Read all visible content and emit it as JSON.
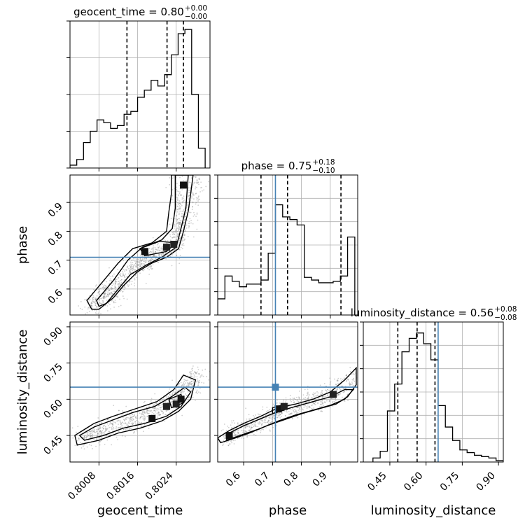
{
  "chart_data": {
    "type": "corner",
    "parameters": [
      "geocent_time",
      "phase",
      "luminosity_distance"
    ],
    "colors": {
      "truth": "#4682b4",
      "hist": "#000000",
      "grid": "#b0b0b0",
      "density": "#000000"
    },
    "truths": {
      "phase": 0.71,
      "luminosity_distance": 0.65
    },
    "axis_ranges": {
      "geocent_time": [
        0.8002,
        0.8031
      ],
      "phase": [
        0.51,
        0.995
      ],
      "luminosity_distance": [
        0.34,
        0.92
      ]
    },
    "ticks": {
      "geocent_time": {
        "values": [
          0.8008,
          0.8016,
          0.8024
        ],
        "labels": [
          "0.8008",
          "0.8016",
          "0.8024"
        ]
      },
      "phase_y": {
        "values": [
          0.6,
          0.7,
          0.8,
          0.9
        ],
        "labels": [
          "0.6",
          "0.7",
          "0.8",
          "0.9"
        ]
      },
      "phase_x": {
        "values": [
          0.6,
          0.7,
          0.8,
          0.9
        ],
        "labels": [
          "0.6",
          "0.7",
          "0.8",
          "0.9"
        ]
      },
      "luminosity_distance": {
        "values": [
          0.45,
          0.6,
          0.75,
          0.9
        ],
        "labels": [
          "0.45",
          "0.60",
          "0.75",
          "0.90"
        ]
      }
    },
    "titles": {
      "geocent_time": {
        "text": "geocent_time = 0.80",
        "sup": "+0.00",
        "sub": "−0.00"
      },
      "phase": {
        "text": "phase = 0.75",
        "sup": "+0.18",
        "sub": "−0.10"
      },
      "luminosity_distance": {
        "text": "luminosity_distance = 0.56",
        "sup": "+0.08",
        "sub": "−0.08"
      }
    },
    "axis_labels": {
      "bottom": [
        "geocent_time",
        "phase",
        "luminosity_distance"
      ],
      "left": [
        "phase",
        "luminosity_distance"
      ]
    },
    "histograms": {
      "geocent_time": {
        "edges": [
          0.8002,
          0.80034,
          0.80048,
          0.80062,
          0.80076,
          0.8009,
          0.80104,
          0.80118,
          0.80132,
          0.80146,
          0.8016,
          0.80174,
          0.80188,
          0.80202,
          0.80216,
          0.8023,
          0.80244,
          0.80258,
          0.80272,
          0.80286,
          0.803
        ],
        "counts": [
          0.02,
          0.06,
          0.18,
          0.26,
          0.34,
          0.32,
          0.28,
          0.3,
          0.38,
          0.4,
          0.5,
          0.55,
          0.62,
          0.58,
          0.66,
          0.8,
          0.95,
          0.98,
          0.52,
          0.14
        ],
        "quantiles": [
          0.80138,
          0.80221,
          0.80255
        ],
        "ymax": 1.0
      },
      "phase": {
        "edges": [
          0.51,
          0.535,
          0.56,
          0.585,
          0.61,
          0.635,
          0.66,
          0.685,
          0.71,
          0.735,
          0.76,
          0.785,
          0.81,
          0.835,
          0.86,
          0.885,
          0.91,
          0.935,
          0.96,
          0.985
        ],
        "counts": [
          0.12,
          0.29,
          0.25,
          0.21,
          0.23,
          0.23,
          0.26,
          0.46,
          0.82,
          0.73,
          0.71,
          0.67,
          0.28,
          0.26,
          0.24,
          0.24,
          0.25,
          0.29,
          0.58
        ],
        "quantiles": [
          0.66,
          0.752,
          0.937
        ],
        "truth": 0.71,
        "ymax": 1.0
      },
      "luminosity_distance": {
        "edges": [
          0.38,
          0.41,
          0.44,
          0.47,
          0.5,
          0.53,
          0.56,
          0.59,
          0.62,
          0.65,
          0.68,
          0.71,
          0.74,
          0.77,
          0.8,
          0.83,
          0.86,
          0.89,
          0.92
        ],
        "counts": [
          0.03,
          0.08,
          0.38,
          0.58,
          0.82,
          0.92,
          0.96,
          0.88,
          0.76,
          0.42,
          0.26,
          0.16,
          0.09,
          0.07,
          0.05,
          0.04,
          0.03,
          0.01
        ],
        "quantiles": [
          0.483,
          0.563,
          0.637
        ],
        "truth": 0.65,
        "ymax": 1.0
      }
    },
    "scatter_2d": {
      "phase_vs_geocent_time": [
        [
          [
            0.80065,
            0.545
          ],
          [
            0.80095,
            0.56
          ],
          [
            0.80115,
            0.59
          ],
          [
            0.8013,
            0.63
          ],
          [
            0.8015,
            0.67
          ],
          [
            0.8017,
            0.7
          ],
          [
            0.8019,
            0.72
          ],
          [
            0.8021,
            0.735
          ],
          [
            0.80235,
            0.76
          ],
          [
            0.8025,
            0.8
          ],
          [
            0.8026,
            0.86
          ],
          [
            0.80275,
            0.93
          ],
          [
            0.8028,
            0.99
          ]
        ],
        [
          [
            0.80055,
            0.54
          ],
          [
            0.8008,
            0.58
          ],
          [
            0.80105,
            0.6
          ],
          [
            0.8014,
            0.66
          ],
          [
            0.8018,
            0.7
          ],
          [
            0.8021,
            0.72
          ],
          [
            0.8024,
            0.74
          ],
          [
            0.80245,
            0.82
          ],
          [
            0.8025,
            0.9
          ],
          [
            0.8024,
            0.99
          ]
        ]
      ],
      "luminosity_distance_vs_geocent_time": [
        [
          [
            0.8004,
            0.42
          ],
          [
            0.80075,
            0.45
          ],
          [
            0.8011,
            0.48
          ],
          [
            0.8015,
            0.5
          ],
          [
            0.8019,
            0.53
          ],
          [
            0.8022,
            0.56
          ],
          [
            0.80245,
            0.6
          ],
          [
            0.8027,
            0.65
          ],
          [
            0.80285,
            0.69
          ]
        ],
        [
          [
            0.8004,
            0.44
          ],
          [
            0.8008,
            0.47
          ],
          [
            0.8012,
            0.5
          ],
          [
            0.8016,
            0.54
          ],
          [
            0.802,
            0.57
          ],
          [
            0.8023,
            0.61
          ],
          [
            0.8026,
            0.66
          ],
          [
            0.8029,
            0.72
          ]
        ]
      ],
      "luminosity_distance_vs_phase": [
        [
          [
            0.53,
            0.43
          ],
          [
            0.58,
            0.46
          ],
          [
            0.64,
            0.49
          ],
          [
            0.7,
            0.53
          ],
          [
            0.76,
            0.56
          ],
          [
            0.82,
            0.58
          ],
          [
            0.88,
            0.6
          ],
          [
            0.94,
            0.63
          ],
          [
            0.99,
            0.7
          ]
        ],
        [
          [
            0.54,
            0.45
          ],
          [
            0.6,
            0.48
          ],
          [
            0.66,
            0.51
          ],
          [
            0.72,
            0.55
          ],
          [
            0.78,
            0.58
          ],
          [
            0.84,
            0.6
          ],
          [
            0.9,
            0.63
          ],
          [
            0.97,
            0.68
          ]
        ]
      ]
    },
    "contours": {
      "phase_vs_geocent_time": [
        [
          [
            0.80065,
            0.53
          ],
          [
            0.8008,
            0.53
          ],
          [
            0.8011,
            0.57
          ],
          [
            0.8013,
            0.61
          ],
          [
            0.8016,
            0.66
          ],
          [
            0.8019,
            0.69
          ],
          [
            0.8022,
            0.71
          ],
          [
            0.80245,
            0.74
          ],
          [
            0.80255,
            0.8
          ],
          [
            0.80265,
            0.87
          ],
          [
            0.8027,
            0.93
          ],
          [
            0.80275,
            0.995
          ],
          [
            0.8023,
            0.995
          ],
          [
            0.8023,
            0.93
          ],
          [
            0.80225,
            0.87
          ],
          [
            0.8022,
            0.8
          ],
          [
            0.8019,
            0.76
          ],
          [
            0.8015,
            0.74
          ],
          [
            0.8012,
            0.69
          ],
          [
            0.8009,
            0.63
          ],
          [
            0.80055,
            0.56
          ],
          [
            0.80065,
            0.53
          ]
        ],
        [
          [
            0.8008,
            0.54
          ],
          [
            0.80095,
            0.55
          ],
          [
            0.8012,
            0.6
          ],
          [
            0.80145,
            0.65
          ],
          [
            0.8018,
            0.685
          ],
          [
            0.8021,
            0.71
          ],
          [
            0.8024,
            0.745
          ],
          [
            0.8025,
            0.81
          ],
          [
            0.8026,
            0.88
          ],
          [
            0.80265,
            0.995
          ],
          [
            0.80238,
            0.995
          ],
          [
            0.80238,
            0.88
          ],
          [
            0.80232,
            0.81
          ],
          [
            0.8021,
            0.77
          ],
          [
            0.8017,
            0.745
          ],
          [
            0.8014,
            0.7
          ],
          [
            0.8011,
            0.63
          ],
          [
            0.80075,
            0.56
          ],
          [
            0.8008,
            0.54
          ]
        ],
        [
          [
            0.80175,
            0.715
          ],
          [
            0.8022,
            0.73
          ],
          [
            0.8024,
            0.76
          ],
          [
            0.80205,
            0.765
          ],
          [
            0.80165,
            0.74
          ],
          [
            0.80175,
            0.715
          ]
        ]
      ],
      "luminosity_distance_vs_geocent_time": [
        [
          [
            0.80035,
            0.41
          ],
          [
            0.8008,
            0.43
          ],
          [
            0.8012,
            0.46
          ],
          [
            0.80165,
            0.48
          ],
          [
            0.8021,
            0.51
          ],
          [
            0.80245,
            0.55
          ],
          [
            0.8027,
            0.6
          ],
          [
            0.8028,
            0.68
          ],
          [
            0.80255,
            0.7
          ],
          [
            0.80235,
            0.64
          ],
          [
            0.802,
            0.59
          ],
          [
            0.80155,
            0.56
          ],
          [
            0.8011,
            0.53
          ],
          [
            0.8007,
            0.5
          ],
          [
            0.8003,
            0.45
          ],
          [
            0.80035,
            0.41
          ]
        ],
        [
          [
            0.8005,
            0.43
          ],
          [
            0.8009,
            0.45
          ],
          [
            0.8013,
            0.48
          ],
          [
            0.80175,
            0.5
          ],
          [
            0.8022,
            0.53
          ],
          [
            0.8025,
            0.57
          ],
          [
            0.8027,
            0.63
          ],
          [
            0.80258,
            0.65
          ],
          [
            0.8023,
            0.61
          ],
          [
            0.80195,
            0.57
          ],
          [
            0.8015,
            0.545
          ],
          [
            0.8011,
            0.515
          ],
          [
            0.8007,
            0.485
          ],
          [
            0.8004,
            0.45
          ],
          [
            0.8005,
            0.43
          ]
        ],
        [
          [
            0.8023,
            0.565
          ],
          [
            0.80255,
            0.585
          ],
          [
            0.8025,
            0.62
          ],
          [
            0.80225,
            0.6
          ],
          [
            0.8023,
            0.565
          ]
        ]
      ],
      "luminosity_distance_vs_phase": [
        [
          [
            0.52,
            0.42
          ],
          [
            0.56,
            0.435
          ],
          [
            0.62,
            0.46
          ],
          [
            0.68,
            0.49
          ],
          [
            0.74,
            0.515
          ],
          [
            0.8,
            0.54
          ],
          [
            0.86,
            0.56
          ],
          [
            0.92,
            0.58
          ],
          [
            0.96,
            0.61
          ],
          [
            0.99,
            0.66
          ],
          [
            0.99,
            0.73
          ],
          [
            0.95,
            0.68
          ],
          [
            0.9,
            0.63
          ],
          [
            0.84,
            0.6
          ],
          [
            0.78,
            0.58
          ],
          [
            0.72,
            0.565
          ],
          [
            0.66,
            0.53
          ],
          [
            0.6,
            0.5
          ],
          [
            0.55,
            0.47
          ],
          [
            0.51,
            0.44
          ],
          [
            0.52,
            0.42
          ]
        ],
        [
          [
            0.54,
            0.43
          ],
          [
            0.6,
            0.455
          ],
          [
            0.66,
            0.48
          ],
          [
            0.72,
            0.51
          ],
          [
            0.78,
            0.535
          ],
          [
            0.84,
            0.555
          ],
          [
            0.9,
            0.575
          ],
          [
            0.95,
            0.6
          ],
          [
            0.98,
            0.64
          ],
          [
            0.95,
            0.64
          ],
          [
            0.9,
            0.61
          ],
          [
            0.84,
            0.59
          ],
          [
            0.78,
            0.57
          ],
          [
            0.72,
            0.55
          ],
          [
            0.66,
            0.52
          ],
          [
            0.6,
            0.49
          ],
          [
            0.55,
            0.46
          ],
          [
            0.54,
            0.43
          ]
        ],
        [
          [
            0.7,
            0.54
          ],
          [
            0.74,
            0.555
          ],
          [
            0.73,
            0.575
          ],
          [
            0.7,
            0.565
          ],
          [
            0.7,
            0.54
          ]
        ]
      ]
    },
    "density_peaks": {
      "phase_vs_geocent_time": [
        [
          0.80175,
          0.73
        ],
        [
          0.80235,
          0.755
        ],
        [
          0.80255,
          0.96
        ],
        [
          0.8022,
          0.745
        ]
      ],
      "luminosity_distance_vs_geocent_time": [
        [
          0.8019,
          0.52
        ],
        [
          0.8024,
          0.58
        ],
        [
          0.8025,
          0.6
        ],
        [
          0.8022,
          0.57
        ]
      ],
      "luminosity_distance_vs_phase": [
        [
          0.72,
          0.56
        ],
        [
          0.74,
          0.57
        ],
        [
          0.55,
          0.45
        ],
        [
          0.91,
          0.62
        ]
      ]
    }
  }
}
